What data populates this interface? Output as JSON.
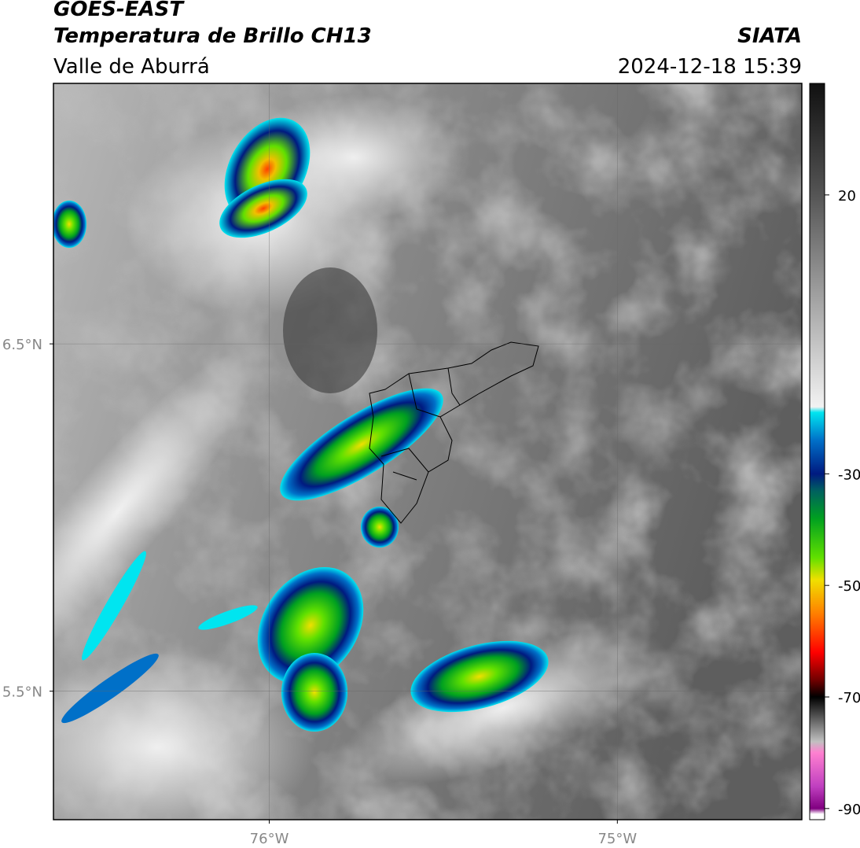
{
  "chart_data": {
    "type": "map",
    "title": "GOES-EAST",
    "subtitle": "Temperatura de Brillo CH13",
    "region": "Valle de Aburrá",
    "source": "SIATA",
    "timestamp": "2024-12-18 15:39",
    "xlim": [
      -76.62,
      -74.47
    ],
    "ylim": [
      5.13,
      7.25
    ],
    "xticks": [
      {
        "value": -76,
        "label": "76°W"
      },
      {
        "value": -75,
        "label": "75°W"
      }
    ],
    "yticks": [
      {
        "value": 6.5,
        "label": "6.5°N"
      },
      {
        "value": 5.5,
        "label": "5.5°N"
      }
    ],
    "grid": true,
    "colorbar": {
      "lim": [
        -92,
        40
      ],
      "ticks": [
        20,
        -30,
        -50,
        -70,
        -90
      ],
      "colormap": [
        [
          40,
          "#101010"
        ],
        [
          20,
          "#555555"
        ],
        [
          0,
          "#a8a8a8"
        ],
        [
          -18,
          "#f2f2f2"
        ],
        [
          -19,
          "#00e5f0"
        ],
        [
          -24,
          "#0070c8"
        ],
        [
          -30,
          "#001a80"
        ],
        [
          -33,
          "#006060"
        ],
        [
          -38,
          "#00a020"
        ],
        [
          -45,
          "#60e000"
        ],
        [
          -49,
          "#f0e000"
        ],
        [
          -55,
          "#ff8000"
        ],
        [
          -62,
          "#ff0000"
        ],
        [
          -67,
          "#700000"
        ],
        [
          -70,
          "#000000"
        ],
        [
          -78,
          "#c0c0c0"
        ],
        [
          -80,
          "#ff80d0"
        ],
        [
          -86,
          "#c040c0"
        ],
        [
          -90,
          "#800080"
        ],
        [
          -91,
          "#ffffff"
        ],
        [
          -92,
          "#ffffff"
        ]
      ]
    }
  }
}
